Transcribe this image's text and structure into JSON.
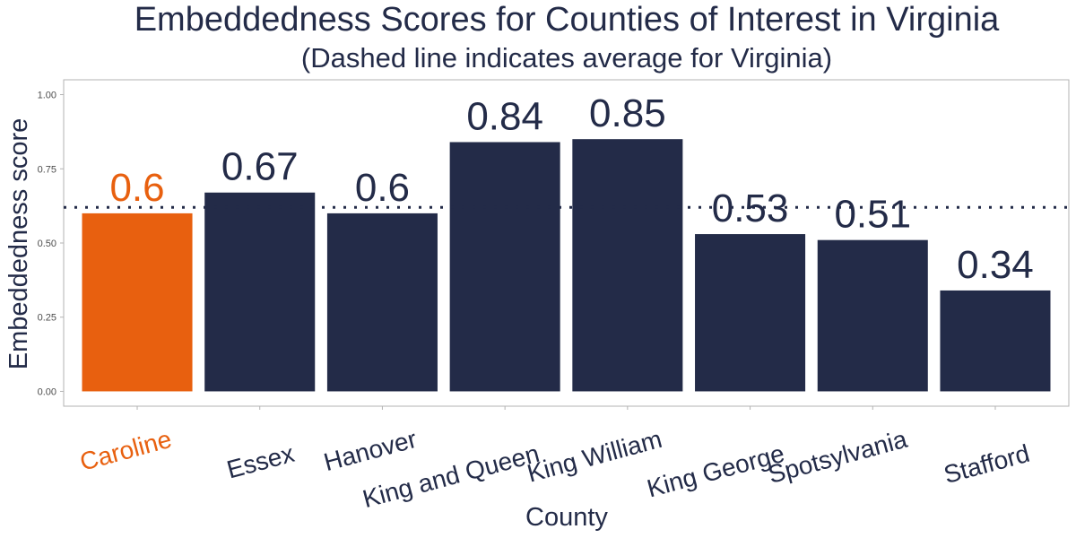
{
  "chart_data": {
    "type": "bar",
    "title": "Embeddedness Scores for Counties of Interest in Virginia",
    "subtitle": "(Dashed line indicates average for Virginia)",
    "xlabel": "County",
    "ylabel": "Embeddedness score",
    "categories": [
      "Caroline",
      "Essex",
      "Hanover",
      "King and Queen",
      "King William",
      "King George",
      "Spotsylvania",
      "Stafford"
    ],
    "values": [
      0.6,
      0.67,
      0.6,
      0.84,
      0.85,
      0.53,
      0.51,
      0.34
    ],
    "value_labels": [
      "0.6",
      "0.67",
      "0.6",
      "0.84",
      "0.85",
      "0.53",
      "0.51",
      "0.34"
    ],
    "highlight": "Caroline",
    "reference_line": {
      "value": 0.62,
      "style": "dotted"
    },
    "yticks": [
      0,
      0.25,
      0.5,
      0.75,
      1.0
    ],
    "ytick_labels": [
      "0.00",
      "0.25",
      "0.50",
      "0.75",
      "1.00"
    ],
    "ylim": [
      -0.05,
      1.05
    ],
    "grid": false,
    "colors": {
      "bar": "#232b48",
      "highlight": "#e8600f",
      "text": "#232b48",
      "axis_text": "#4d4d4d",
      "frame": "#b3b3b3"
    }
  }
}
